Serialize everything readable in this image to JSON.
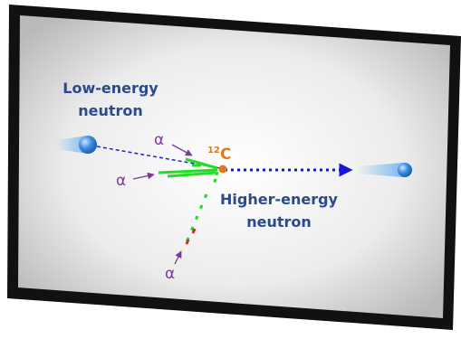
{
  "labels": {
    "incoming": [
      "Low-energy",
      "neutron"
    ],
    "target": {
      "mass_number": "12",
      "symbol": "C"
    },
    "outgoing": [
      "Higher-energy",
      "neutron"
    ],
    "alphas": [
      "α",
      "α",
      "α"
    ]
  }
}
